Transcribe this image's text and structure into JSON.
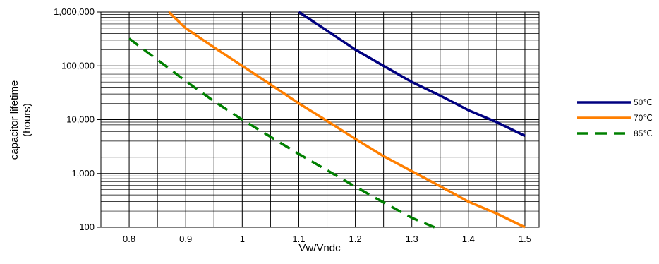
{
  "chart_data": {
    "type": "line",
    "xlabel": "Vw/Vndc",
    "ylabel_lines": [
      "capacitor lifetime",
      "(hours)"
    ],
    "xlim": [
      0.75,
      1.525
    ],
    "ylim": [
      100,
      1000000
    ],
    "yscale": "log",
    "grid": true,
    "legend_position": "right",
    "x_ticks": [
      {
        "value": 0.8,
        "label": "0.8"
      },
      {
        "value": 0.9,
        "label": "0.9"
      },
      {
        "value": 1.0,
        "label": "1"
      },
      {
        "value": 1.1,
        "label": "1.1"
      },
      {
        "value": 1.2,
        "label": "1.2"
      },
      {
        "value": 1.3,
        "label": "1.3"
      },
      {
        "value": 1.4,
        "label": "1.4"
      },
      {
        "value": 1.5,
        "label": "1.5"
      }
    ],
    "y_ticks": [
      {
        "value": 100,
        "label": "100"
      },
      {
        "value": 1000,
        "label": "1,000"
      },
      {
        "value": 10000,
        "label": "10,000"
      },
      {
        "value": 100000,
        "label": "100,000"
      },
      {
        "value": 1000000,
        "label": "1,000,000"
      }
    ],
    "series": [
      {
        "name": "50℃",
        "color": "#000080",
        "dashed": false,
        "points": [
          [
            1.1,
            1000000
          ],
          [
            1.15,
            450000
          ],
          [
            1.2,
            200000
          ],
          [
            1.25,
            100000
          ],
          [
            1.3,
            50000
          ],
          [
            1.35,
            28000
          ],
          [
            1.4,
            15000
          ],
          [
            1.45,
            9000
          ],
          [
            1.5,
            5000
          ]
        ]
      },
      {
        "name": "70℃",
        "color": "#ff7f00",
        "dashed": false,
        "points": [
          [
            0.87,
            1000000
          ],
          [
            0.9,
            500000
          ],
          [
            0.95,
            220000
          ],
          [
            1.0,
            100000
          ],
          [
            1.05,
            45000
          ],
          [
            1.1,
            20000
          ],
          [
            1.15,
            9500
          ],
          [
            1.2,
            4400
          ],
          [
            1.25,
            2100
          ],
          [
            1.3,
            1100
          ],
          [
            1.35,
            580
          ],
          [
            1.4,
            300
          ],
          [
            1.45,
            180
          ],
          [
            1.5,
            100
          ]
        ]
      },
      {
        "name": "85℃",
        "color": "#008000",
        "dashed": true,
        "points": [
          [
            0.8,
            320000
          ],
          [
            0.85,
            130000
          ],
          [
            0.9,
            52000
          ],
          [
            0.95,
            22000
          ],
          [
            1.0,
            10000
          ],
          [
            1.05,
            4800
          ],
          [
            1.1,
            2300
          ],
          [
            1.15,
            1150
          ],
          [
            1.2,
            570
          ],
          [
            1.25,
            290
          ],
          [
            1.3,
            150
          ],
          [
            1.34,
            100
          ]
        ]
      }
    ]
  }
}
